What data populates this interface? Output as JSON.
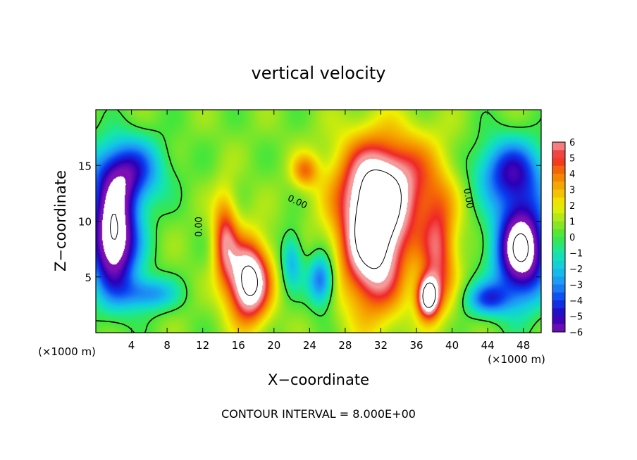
{
  "chart_data": {
    "type": "heatmap",
    "title": "vertical velocity",
    "xlabel": "X−coordinate",
    "ylabel": "Z−coordinate",
    "x_unit_left": "(×1000 m)",
    "x_unit_right": "(×1000 m)",
    "footer": "CONTOUR INTERVAL = 8.000E+00",
    "xlim": [
      0,
      50
    ],
    "ylim": [
      0,
      20
    ],
    "x_ticks": [
      4,
      8,
      12,
      16,
      20,
      24,
      28,
      32,
      36,
      40,
      44,
      48
    ],
    "y_ticks": [
      5,
      10,
      15
    ],
    "colorbar": {
      "min": -6,
      "max": 6,
      "tick_values": [
        6,
        5,
        4,
        3,
        2,
        1,
        0,
        -1,
        -2,
        -3,
        -4,
        -5,
        -6
      ],
      "tick_labels": [
        "6",
        "5",
        "4",
        "3",
        "2",
        "1",
        "0",
        "−1",
        "−2",
        "−3",
        "−4",
        "−5",
        "−6"
      ],
      "over_color": "#ffffff",
      "under_color": "#ffffff"
    },
    "contour_labels": [
      {
        "text": "0.00",
        "x": 11.9,
        "z": 9.5,
        "rotate": -90
      },
      {
        "text": "0.00",
        "x": 22.5,
        "z": 11.5,
        "rotate": 25
      },
      {
        "text": "0.00",
        "x": 41.5,
        "z": 12.0,
        "rotate": 80
      }
    ],
    "features": [
      {
        "type": "updraft_core",
        "x": 17.2,
        "z": 4.6,
        "w": 8.5,
        "radius_x": 2.3,
        "radius_z": 3.6
      },
      {
        "type": "updraft_core",
        "x": 31.2,
        "z": 8.3,
        "w": 8.5,
        "radius_x": 3.6,
        "radius_z": 6.2
      },
      {
        "type": "updraft_core",
        "x": 37.3,
        "z": 3.2,
        "w": 8.0,
        "radius_x": 1.2,
        "radius_z": 1.8
      },
      {
        "type": "updraft_arc",
        "x": 33.0,
        "z": 13.5,
        "w": 5.0,
        "radius_x": 6.0,
        "radius_z": 4.5
      },
      {
        "type": "updraft_band",
        "x": 14.5,
        "z": 8.5,
        "w": 4.5,
        "radius_x": 1.4,
        "radius_z": 4.0
      },
      {
        "type": "updraft_band",
        "x": 38.5,
        "z": 7.0,
        "w": 4.5,
        "radius_x": 2.0,
        "radius_z": 5.0
      },
      {
        "type": "weak_updraft",
        "x": 23.5,
        "z": 14.5,
        "w": 3.0,
        "radius_x": 1.5,
        "radius_z": 1.5
      },
      {
        "type": "downdraft_core",
        "x": 2.0,
        "z": 8.5,
        "w": -9.0,
        "radius_x": 2.8,
        "radius_z": 5.0
      },
      {
        "type": "downdraft_core",
        "x": 47.8,
        "z": 7.5,
        "w": -9.0,
        "radius_x": 3.0,
        "radius_z": 4.5
      },
      {
        "type": "downdraft_belt",
        "x": 3.5,
        "z": 14.5,
        "w": -5.0,
        "radius_x": 4.0,
        "radius_z": 3.0
      },
      {
        "type": "downdraft_belt",
        "x": 46.5,
        "z": 14.5,
        "w": -5.0,
        "radius_x": 4.0,
        "radius_z": 3.0
      },
      {
        "type": "downdraft",
        "x": 25.3,
        "z": 4.7,
        "w": -4.5,
        "radius_x": 1.5,
        "radius_z": 2.3
      },
      {
        "type": "downdraft",
        "x": 22.0,
        "z": 6.5,
        "w": -3.0,
        "radius_x": 1.2,
        "radius_z": 2.5
      },
      {
        "type": "downdraft",
        "x": 6.0,
        "z": 3.5,
        "w": -3.5,
        "radius_x": 3.0,
        "radius_z": 1.5
      },
      {
        "type": "downdraft",
        "x": 44.0,
        "z": 3.0,
        "w": -4.0,
        "radius_x": 2.5,
        "radius_z": 1.5
      }
    ]
  }
}
